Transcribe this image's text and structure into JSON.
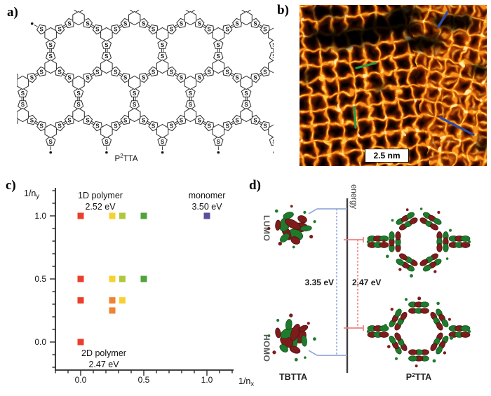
{
  "panels": {
    "a": {
      "label": "a)",
      "molecule": {
        "base": "P",
        "sup": "2",
        "rest": "TTA"
      },
      "atom_symbol": "S",
      "description": "2D polymer network structure"
    },
    "b": {
      "label": "b)",
      "scale_bar": "2.5 nm",
      "annotation_colors": {
        "blue": "#2b4da8",
        "green": "#2f9646"
      },
      "palette": {
        "background": "#000000",
        "mesh_low": "#7a1e00",
        "mesh_mid": "#cf5a04",
        "mesh_high": "#f6921b",
        "mesh_bright": "#ffd653",
        "highlight": "#fff3b0",
        "highlight2": "#ffd24a"
      }
    },
    "c": {
      "label": "c)"
    },
    "d": {
      "label": "d)",
      "energy_axis_label": "energy",
      "lumo_label": "LUMO",
      "homo_label": "HOMO",
      "left_molecule": "TBTTA",
      "right_molecule": {
        "base": "P",
        "sup": "2",
        "rest": "TTA"
      },
      "left_gap": "3.35 eV",
      "right_gap": "2.47 eV",
      "bracket_colors": {
        "left": "#96a9da",
        "right": "#f08080"
      },
      "orbital_colors": {
        "positive": "#1e7b2c",
        "negative": "#7e1b1b"
      }
    }
  },
  "chart_data": {
    "type": "scatter",
    "title": "",
    "xlabel": "1/nx",
    "ylabel": "1/ny",
    "xlabel_parts": {
      "base": "1/n",
      "sub": "x"
    },
    "ylabel_parts": {
      "base": "1/n",
      "sub": "y"
    },
    "xlim": [
      -0.2,
      1.26
    ],
    "ylim": [
      -0.22,
      1.22
    ],
    "xtick_values": [
      0.0,
      0.5,
      1.0
    ],
    "xtick_labels": [
      "0.0",
      "0.5",
      "1.0"
    ],
    "ytick_values": [
      1.0,
      0.5,
      0.0
    ],
    "ytick_labels": [
      "1.0",
      "0.5",
      "0.0"
    ],
    "minor_tick_step": 0.1,
    "grid": false,
    "marker": "square",
    "points": [
      {
        "x": 0.0,
        "y": 1.0,
        "color": "#e8402c",
        "color_name": "red"
      },
      {
        "x": 0.25,
        "y": 1.0,
        "color": "#f6d22e",
        "color_name": "yellow"
      },
      {
        "x": 0.33,
        "y": 1.0,
        "color": "#acc93b",
        "color_name": "yellow-green"
      },
      {
        "x": 0.5,
        "y": 1.0,
        "color": "#4fa43c",
        "color_name": "green"
      },
      {
        "x": 1.0,
        "y": 1.0,
        "color": "#5b4f9e",
        "color_name": "purple"
      },
      {
        "x": 0.0,
        "y": 0.5,
        "color": "#e8402c",
        "color_name": "red"
      },
      {
        "x": 0.25,
        "y": 0.5,
        "color": "#f6d22e",
        "color_name": "yellow"
      },
      {
        "x": 0.33,
        "y": 0.5,
        "color": "#acc93b",
        "color_name": "yellow-green"
      },
      {
        "x": 0.5,
        "y": 0.5,
        "color": "#4fa43c",
        "color_name": "green"
      },
      {
        "x": 0.0,
        "y": 0.33,
        "color": "#e8402c",
        "color_name": "red"
      },
      {
        "x": 0.25,
        "y": 0.33,
        "color": "#f08232",
        "color_name": "orange"
      },
      {
        "x": 0.33,
        "y": 0.33,
        "color": "#f6d22e",
        "color_name": "yellow"
      },
      {
        "x": 0.25,
        "y": 0.25,
        "color": "#f08232",
        "color_name": "orange"
      },
      {
        "x": 0.0,
        "y": 0.0,
        "color": "#e8402c",
        "color_name": "red"
      }
    ],
    "annotations": [
      {
        "label": "1D polymer",
        "energy": "2.52 eV",
        "energy_eV": 2.52,
        "x": 0.0,
        "y": 1.0
      },
      {
        "label": "monomer",
        "energy": "3.50 eV",
        "energy_eV": 3.5,
        "x": 1.0,
        "y": 1.0
      },
      {
        "label": "2D polymer",
        "energy": "2.47 eV",
        "energy_eV": 2.47,
        "x": 0.0,
        "y": 0.0
      }
    ]
  }
}
